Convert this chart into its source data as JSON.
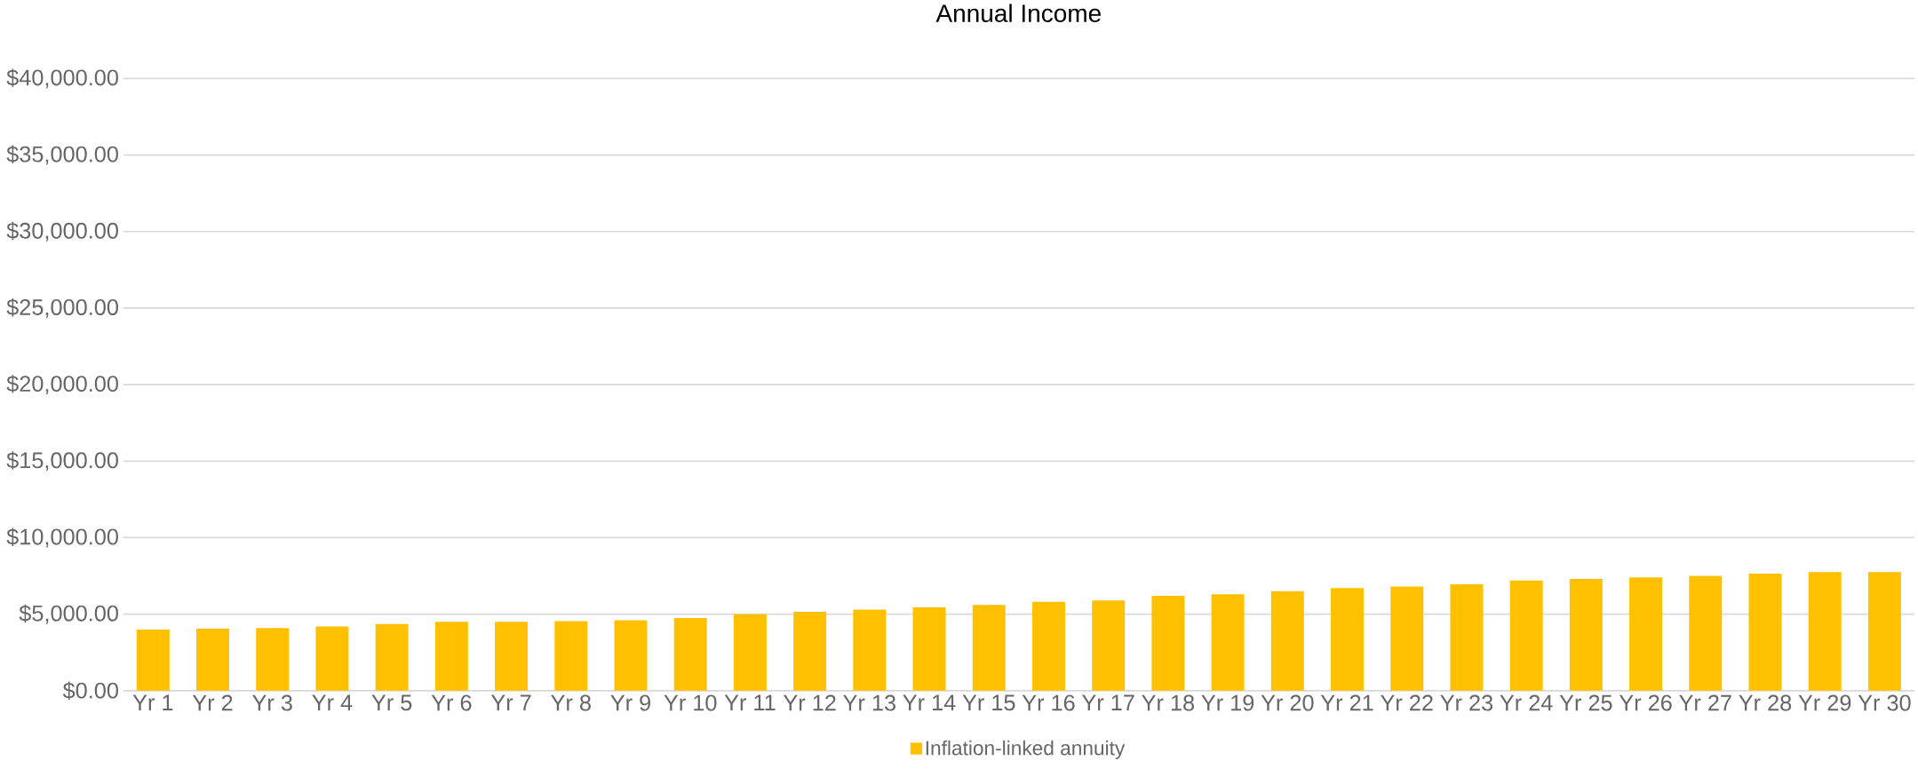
{
  "chart_data": {
    "type": "bar",
    "title": "Annual Income",
    "categories": [
      "Yr 1",
      "Yr 2",
      "Yr 3",
      "Yr 4",
      "Yr 5",
      "Yr 6",
      "Yr 7",
      "Yr 8",
      "Yr 9",
      "Yr 10",
      "Yr 11",
      "Yr 12",
      "Yr 13",
      "Yr 14",
      "Yr 15",
      "Yr 16",
      "Yr 17",
      "Yr 18",
      "Yr 19",
      "Yr 20",
      "Yr 21",
      "Yr 22",
      "Yr 23",
      "Yr 24",
      "Yr 25",
      "Yr 26",
      "Yr 27",
      "Yr 28",
      "Yr 29",
      "Yr 30"
    ],
    "series": [
      {
        "name": "Inflation-linked annuity",
        "color": "#ffc000",
        "values": [
          4000,
          4050,
          4100,
          4200,
          4350,
          4500,
          4500,
          4550,
          4600,
          4750,
          5000,
          5150,
          5300,
          5450,
          5600,
          5800,
          5900,
          6200,
          6300,
          6500,
          6700,
          6800,
          6950,
          7200,
          7300,
          7400,
          7500,
          7650,
          7750,
          7750
        ]
      }
    ],
    "ylim": [
      0,
      40000
    ],
    "yticks": [
      {
        "value": 0,
        "label": "$0.00"
      },
      {
        "value": 5000,
        "label": "$5,000.00"
      },
      {
        "value": 10000,
        "label": "$10,000.00"
      },
      {
        "value": 15000,
        "label": "$15,000.00"
      },
      {
        "value": 20000,
        "label": "$20,000.00"
      },
      {
        "value": 25000,
        "label": "$25,000.00"
      },
      {
        "value": 30000,
        "label": "$30,000.00"
      },
      {
        "value": 35000,
        "label": "$35,000.00"
      },
      {
        "value": 40000,
        "label": "$40,000.00"
      }
    ],
    "grid": "y",
    "legend": "bottom"
  }
}
